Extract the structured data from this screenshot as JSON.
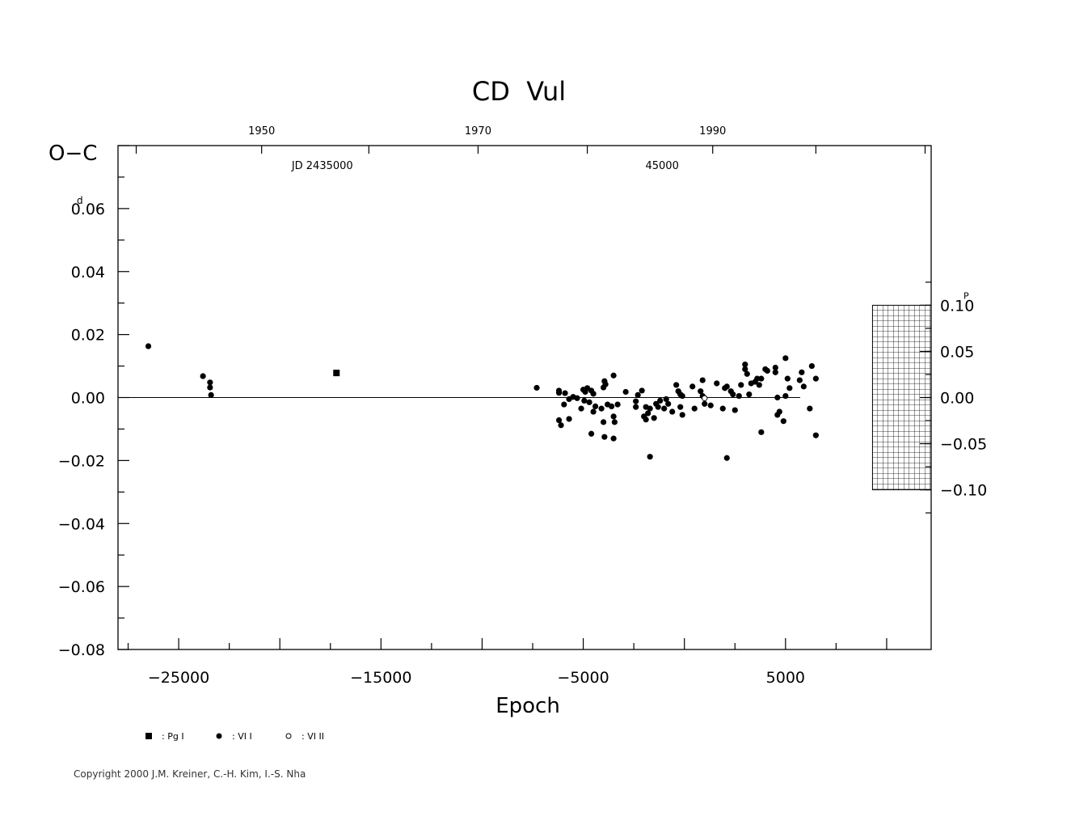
{
  "chart_data": {
    "type": "scatter",
    "title": "CD  Vul",
    "ylabel": "O−C",
    "xlabel": "Epoch",
    "xlim": [
      -28000,
      12200
    ],
    "ylim": [
      -0.08,
      0.08
    ],
    "x_ticks": [
      -25000,
      -15000,
      -5000,
      5000
    ],
    "x_tick_labels": [
      "−25000",
      "−15000",
      "−5000",
      "5000"
    ],
    "y_ticks": [
      -0.08,
      -0.06,
      -0.04,
      -0.02,
      0.0,
      0.02,
      0.04,
      0.06
    ],
    "y_tick_labels": [
      "−0.08",
      "−0.06",
      "−0.04",
      "−0.02",
      "0.00",
      "0.02",
      "0.04",
      "0.06"
    ],
    "y_unit": "d",
    "right_axis": {
      "unit": "P",
      "ticks": [
        -0.1,
        -0.05,
        0.0,
        0.05,
        0.1
      ],
      "tick_labels": [
        "−0.10",
        "−0.05",
        "0.00",
        "0.05",
        "0.10"
      ],
      "ratio_days_per_period": 0.293
    },
    "top_axis": {
      "year_ticks": [
        {
          "label": "1950",
          "epoch": -20900
        },
        {
          "label": "1970",
          "epoch": -10200
        },
        {
          "label": "1990",
          "epoch": 1400
        }
      ],
      "jd_ticks": [
        {
          "label": "JD  2435000",
          "epoch": -17900
        },
        {
          "label": "45000",
          "epoch": -1100
        }
      ]
    },
    "future_region": {
      "x_from": 9300,
      "x_to": 12200,
      "y_from": -0.1,
      "y_to": 0.1
    },
    "series": [
      {
        "name": "Pg I",
        "marker": "square",
        "points": [
          [
            -17200,
            0.0078
          ]
        ]
      },
      {
        "name": "VI I",
        "marker": "filled-circle",
        "points": [
          [
            -26500,
            0.0163
          ],
          [
            -23800,
            0.0068
          ],
          [
            -23450,
            0.0048
          ],
          [
            -23450,
            0.0032
          ],
          [
            -23400,
            0.0008
          ],
          [
            -7300,
            0.0031
          ],
          [
            -6200,
            0.0022
          ],
          [
            -6200,
            0.0015
          ],
          [
            -5900,
            0.0014
          ],
          [
            -6200,
            -0.0072
          ],
          [
            -6100,
            -0.0088
          ],
          [
            -5950,
            -0.0022
          ],
          [
            -5700,
            -0.0005
          ],
          [
            -5500,
            0.0002
          ],
          [
            -5300,
            -0.0002
          ],
          [
            -5100,
            -0.0035
          ],
          [
            -5000,
            0.0025
          ],
          [
            -4950,
            -0.001
          ],
          [
            -4900,
            0.0018
          ],
          [
            -4800,
            0.003
          ],
          [
            -4700,
            -0.0015
          ],
          [
            -4600,
            0.0022
          ],
          [
            -4500,
            0.0012
          ],
          [
            -4400,
            -0.0028
          ],
          [
            -4600,
            -0.0115
          ],
          [
            -5700,
            -0.0068
          ],
          [
            -4500,
            -0.0045
          ],
          [
            -4100,
            -0.0035
          ],
          [
            -4000,
            0.0032
          ],
          [
            -3950,
            0.0052
          ],
          [
            -3900,
            0.0042
          ],
          [
            -3800,
            -0.0022
          ],
          [
            -3600,
            -0.0028
          ],
          [
            -3500,
            -0.006
          ],
          [
            -3450,
            -0.0078
          ],
          [
            -4000,
            -0.0078
          ],
          [
            -3950,
            -0.0125
          ],
          [
            -3500,
            -0.013
          ],
          [
            -3500,
            0.007
          ],
          [
            -3300,
            -0.0022
          ],
          [
            -2900,
            0.0018
          ],
          [
            -2400,
            -0.0012
          ],
          [
            -2300,
            0.0008
          ],
          [
            -2400,
            -0.003
          ],
          [
            -2100,
            0.0022
          ],
          [
            -1900,
            -0.003
          ],
          [
            -1800,
            -0.005
          ],
          [
            -1700,
            -0.0035
          ],
          [
            -2000,
            -0.006
          ],
          [
            -1900,
            -0.007
          ],
          [
            -1500,
            -0.0065
          ],
          [
            -1400,
            -0.002
          ],
          [
            -1300,
            -0.003
          ],
          [
            -1200,
            -0.001
          ],
          [
            -1000,
            -0.0035
          ],
          [
            -900,
            -0.0005
          ],
          [
            -800,
            -0.002
          ],
          [
            -600,
            -0.0045
          ],
          [
            -1700,
            -0.0188
          ],
          [
            -400,
            0.004
          ],
          [
            -300,
            0.002
          ],
          [
            -200,
            0.001
          ],
          [
            -200,
            -0.003
          ],
          [
            -100,
            0.0005
          ],
          [
            -100,
            -0.0055
          ],
          [
            400,
            0.0035
          ],
          [
            500,
            -0.0035
          ],
          [
            800,
            0.002
          ],
          [
            900,
            0.0055
          ],
          [
            1000,
            -0.002
          ],
          [
            1300,
            -0.0025
          ],
          [
            1600,
            0.0045
          ],
          [
            1900,
            -0.0035
          ],
          [
            2000,
            0.003
          ],
          [
            2100,
            0.0035
          ],
          [
            2300,
            0.002
          ],
          [
            2400,
            0.001
          ],
          [
            2500,
            -0.004
          ],
          [
            2700,
            0.0005
          ],
          [
            2800,
            0.004
          ],
          [
            3000,
            0.0105
          ],
          [
            3000,
            0.009
          ],
          [
            3100,
            0.0075
          ],
          [
            3200,
            0.001
          ],
          [
            3300,
            0.0045
          ],
          [
            3500,
            0.005
          ],
          [
            3600,
            0.006
          ],
          [
            3700,
            0.004
          ],
          [
            3800,
            0.006
          ],
          [
            4000,
            0.009
          ],
          [
            4100,
            0.0085
          ],
          [
            4500,
            0.0095
          ],
          [
            4500,
            0.008
          ],
          [
            4600,
            0.0
          ],
          [
            4700,
            -0.0045
          ],
          [
            4600,
            -0.0055
          ],
          [
            4900,
            -0.0075
          ],
          [
            5000,
            0.0125
          ],
          [
            5100,
            0.006
          ],
          [
            5200,
            0.003
          ],
          [
            5000,
            0.0005
          ],
          [
            5700,
            0.0055
          ],
          [
            5800,
            0.008
          ],
          [
            5900,
            0.0035
          ],
          [
            6300,
            0.01
          ],
          [
            6500,
            0.006
          ],
          [
            6200,
            -0.0035
          ],
          [
            6500,
            -0.012
          ],
          [
            3800,
            -0.011
          ],
          [
            2100,
            -0.0192
          ],
          [
            900,
            0.0005
          ]
        ]
      },
      {
        "name": "VI II",
        "marker": "open-circle",
        "points": [
          [
            1000,
            -0.0002
          ]
        ]
      }
    ],
    "legend": {
      "placement": "bottom-left",
      "entries": [
        {
          "marker": "square",
          "label": ": Pg I"
        },
        {
          "marker": "filled-circle",
          "label": ": VI I"
        },
        {
          "marker": "open-circle",
          "label": ": VI II"
        }
      ]
    },
    "grid": false
  },
  "footer": {
    "copyright": "Copyright 2000 J.M. Kreiner, C.-H. Kim, I.-S. Nha"
  }
}
